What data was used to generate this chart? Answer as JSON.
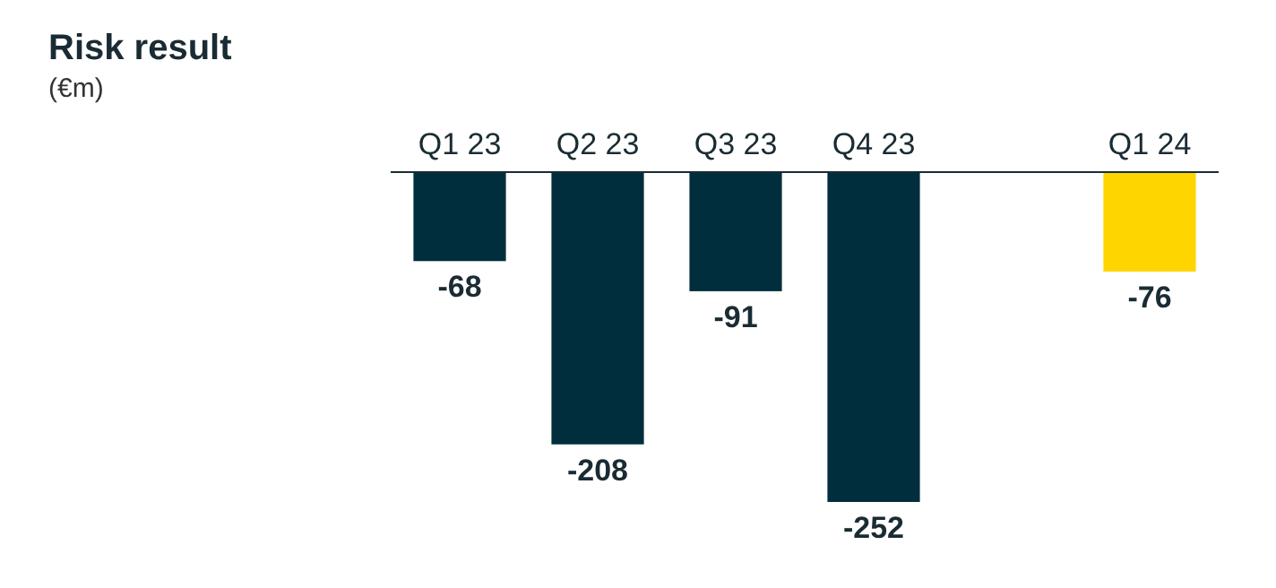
{
  "chart_data": {
    "type": "bar",
    "title": "Risk result",
    "subtitle": "(€m)",
    "categories": [
      "Q1 23",
      "Q2 23",
      "Q3 23",
      "Q4 23",
      null,
      "Q1 24"
    ],
    "values": [
      -68,
      -208,
      -91,
      -252,
      null,
      -76
    ],
    "colors": [
      "#002e3c",
      "#002e3c",
      "#002e3c",
      "#002e3c",
      null,
      "#ffd500"
    ],
    "data_labels": true
  }
}
